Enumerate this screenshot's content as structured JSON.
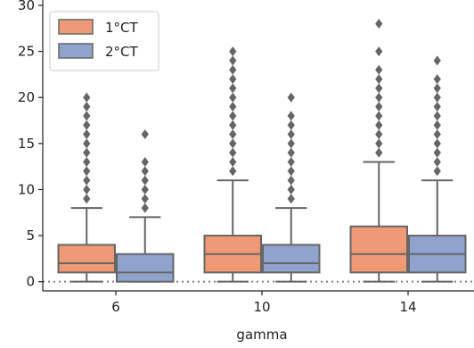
{
  "chart_data": {
    "type": "boxplot",
    "title": "",
    "xlabel": "gamma",
    "ylabel": "",
    "categories": [
      "6",
      "10",
      "14"
    ],
    "ylim": [
      -1,
      30
    ],
    "yticks": [
      "0",
      "5",
      "10",
      "15",
      "20",
      "25",
      "30"
    ],
    "grid": false,
    "legend_position": "top-left",
    "reference_line": {
      "y": 0,
      "style": "dotted",
      "color": "#7f7f7f"
    },
    "series": [
      {
        "name": "1°CT",
        "color": "#ef9a74",
        "boxes": [
          {
            "category": "6",
            "whisker_low": 0,
            "q1": 1,
            "median": 2,
            "q3": 4,
            "whisker_high": 8,
            "outliers": [
              9,
              10,
              11,
              12,
              13,
              14,
              15,
              16,
              17,
              18,
              19,
              20
            ]
          },
          {
            "category": "10",
            "whisker_low": 0,
            "q1": 1,
            "median": 3,
            "q3": 5,
            "whisker_high": 11,
            "outliers": [
              12,
              13,
              14,
              15,
              16,
              17,
              18,
              19,
              20,
              21,
              22,
              23,
              24,
              25
            ]
          },
          {
            "category": "14",
            "whisker_low": 0,
            "q1": 1,
            "median": 3,
            "q3": 6,
            "whisker_high": 13,
            "outliers": [
              14,
              15,
              16,
              17,
              18,
              19,
              20,
              21,
              22,
              23,
              25,
              28
            ]
          }
        ]
      },
      {
        "name": "2°CT",
        "color": "#8fa3cc",
        "boxes": [
          {
            "category": "6",
            "whisker_low": 0,
            "q1": 0,
            "median": 1,
            "q3": 3,
            "whisker_high": 7,
            "outliers": [
              8,
              9,
              10,
              11,
              12,
              13,
              16
            ]
          },
          {
            "category": "10",
            "whisker_low": 0,
            "q1": 1,
            "median": 2,
            "q3": 4,
            "whisker_high": 8,
            "outliers": [
              9,
              10,
              11,
              12,
              13,
              14,
              15,
              16,
              17,
              18,
              20
            ]
          },
          {
            "category": "14",
            "whisker_low": 0,
            "q1": 1,
            "median": 3,
            "q3": 5,
            "whisker_high": 11,
            "outliers": [
              12,
              13,
              14,
              15,
              16,
              17,
              18,
              19,
              20,
              21,
              22,
              24
            ]
          }
        ]
      }
    ]
  },
  "colors": {
    "box_edge": "#666666",
    "axis": "#222222"
  }
}
